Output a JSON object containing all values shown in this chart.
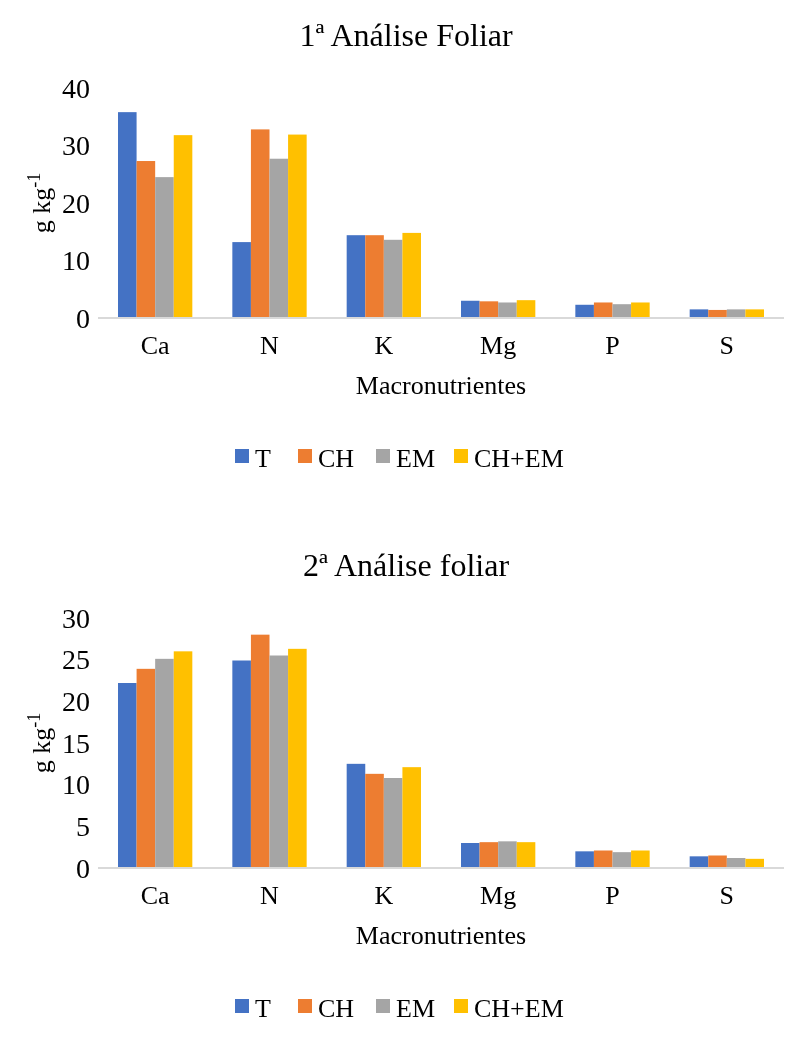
{
  "chart_data": [
    {
      "type": "bar",
      "title": "1ª Análise Foliar",
      "xlabel": "Macronutrientes",
      "ylabel": "g kg$^{-1}$",
      "categories": [
        "Ca",
        "N",
        "K",
        "Mg",
        "P",
        "S"
      ],
      "ylim": [
        0,
        40
      ],
      "yticks": [
        0,
        10,
        20,
        30,
        40
      ],
      "legend": "bottom",
      "series": [
        {
          "name": "T",
          "color": "#4472c4",
          "values": [
            35.8,
            13.2,
            14.4,
            3.0,
            2.3,
            1.5
          ]
        },
        {
          "name": "CH",
          "color": "#ed7d31",
          "values": [
            27.3,
            32.8,
            14.4,
            2.9,
            2.7,
            1.4
          ]
        },
        {
          "name": "EM",
          "color": "#a5a5a5",
          "values": [
            24.5,
            27.7,
            13.6,
            2.7,
            2.4,
            1.5
          ]
        },
        {
          "name": "CH+EM",
          "color": "#ffc000",
          "values": [
            31.8,
            31.9,
            14.8,
            3.1,
            2.7,
            1.5
          ]
        }
      ]
    },
    {
      "type": "bar",
      "title": "2ª Análise foliar",
      "xlabel": "Macronutrientes",
      "ylabel": "g kg$^{-1}$",
      "categories": [
        "Ca",
        "N",
        "K",
        "Mg",
        "P",
        "S"
      ],
      "ylim": [
        0,
        30
      ],
      "yticks": [
        0,
        5,
        10,
        15,
        20,
        25,
        30
      ],
      "legend": "bottom",
      "series": [
        {
          "name": "T",
          "color": "#4472c4",
          "values": [
            22.2,
            24.9,
            12.5,
            3.0,
            2.0,
            1.4
          ]
        },
        {
          "name": "CH",
          "color": "#ed7d31",
          "values": [
            23.9,
            28.0,
            11.3,
            3.1,
            2.1,
            1.5
          ]
        },
        {
          "name": "EM",
          "color": "#a5a5a5",
          "values": [
            25.1,
            25.5,
            10.8,
            3.2,
            1.9,
            1.2
          ]
        },
        {
          "name": "CH+EM",
          "color": "#ffc000",
          "values": [
            26.0,
            26.3,
            12.1,
            3.1,
            2.1,
            1.1
          ]
        }
      ]
    }
  ]
}
